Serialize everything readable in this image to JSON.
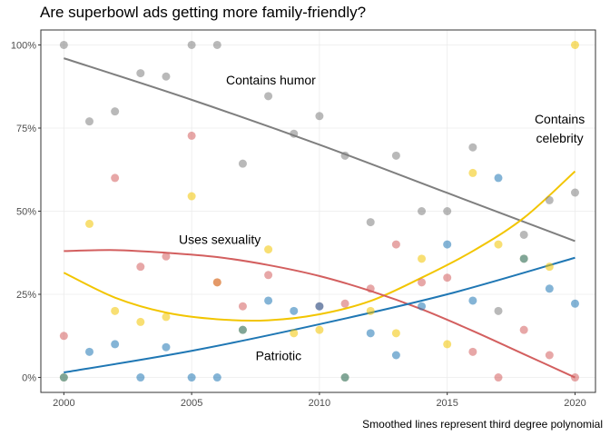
{
  "chart_data": {
    "type": "scatter",
    "title": "Are superbowl ads getting more family-friendly?",
    "caption": "Smoothed lines represent third degree polynomial",
    "xlabel": "",
    "ylabel": "",
    "xlim": [
      2000,
      2020
    ],
    "ylim": [
      0,
      1
    ],
    "x_ticks": [
      2000,
      2005,
      2010,
      2015,
      2020
    ],
    "x_tick_labels": [
      "2000",
      "2005",
      "2010",
      "2015",
      "2020"
    ],
    "y_ticks": [
      0,
      0.25,
      0.5,
      0.75,
      1
    ],
    "y_tick_labels": [
      "0%",
      "25%",
      "50%",
      "75%",
      "100%"
    ],
    "grid": true,
    "legend": "none",
    "series": [
      {
        "name": "Contains humor",
        "color": "#7f7f7f",
        "points": [
          [
            2000,
            1.0
          ],
          [
            2001,
            0.77
          ],
          [
            2002,
            0.8
          ],
          [
            2003,
            0.915
          ],
          [
            2004,
            0.905
          ],
          [
            2005,
            1.0
          ],
          [
            2006,
            1.0
          ],
          [
            2007,
            0.643
          ],
          [
            2008,
            0.846
          ],
          [
            2009,
            0.733
          ],
          [
            2010,
            0.786
          ],
          [
            2011,
            0.667
          ],
          [
            2012,
            0.467
          ],
          [
            2013,
            0.667
          ],
          [
            2014,
            0.5
          ],
          [
            2015,
            0.5
          ],
          [
            2016,
            0.692
          ],
          [
            2017,
            0.2
          ],
          [
            2018,
            0.429
          ],
          [
            2019,
            0.533
          ],
          [
            2020,
            0.556
          ]
        ],
        "trend": [
          [
            2000,
            0.96
          ],
          [
            2005,
            0.835
          ],
          [
            2010,
            0.7
          ],
          [
            2015,
            0.555
          ],
          [
            2020,
            0.41
          ]
        ]
      },
      {
        "name": "Contains celebrity",
        "color": "#f2c500",
        "points": [
          [
            2000,
            0.0
          ],
          [
            2001,
            0.462
          ],
          [
            2002,
            0.2
          ],
          [
            2003,
            0.167
          ],
          [
            2004,
            0.182
          ],
          [
            2005,
            0.545
          ],
          [
            2006,
            0.286
          ],
          [
            2007,
            0.143
          ],
          [
            2008,
            0.385
          ],
          [
            2009,
            0.133
          ],
          [
            2010,
            0.143
          ],
          [
            2011,
            0.0
          ],
          [
            2012,
            0.2
          ],
          [
            2013,
            0.133
          ],
          [
            2014,
            0.357
          ],
          [
            2015,
            0.1
          ],
          [
            2016,
            0.615
          ],
          [
            2017,
            0.4
          ],
          [
            2018,
            0.357
          ],
          [
            2019,
            0.333
          ],
          [
            2020,
            1.0
          ]
        ],
        "trend": [
          [
            2000,
            0.315
          ],
          [
            2002,
            0.24
          ],
          [
            2004,
            0.195
          ],
          [
            2006,
            0.175
          ],
          [
            2008,
            0.172
          ],
          [
            2010,
            0.19
          ],
          [
            2012,
            0.23
          ],
          [
            2014,
            0.3
          ],
          [
            2016,
            0.38
          ],
          [
            2018,
            0.48
          ],
          [
            2020,
            0.62
          ]
        ]
      },
      {
        "name": "Uses sexuality",
        "color": "#d35f5f",
        "points": [
          [
            2000,
            0.125
          ],
          [
            2002,
            0.6
          ],
          [
            2003,
            0.333
          ],
          [
            2004,
            0.364
          ],
          [
            2005,
            0.727
          ],
          [
            2006,
            0.286
          ],
          [
            2007,
            0.214
          ],
          [
            2008,
            0.308
          ],
          [
            2010,
            0.214
          ],
          [
            2011,
            0.222
          ],
          [
            2012,
            0.267
          ],
          [
            2013,
            0.4
          ],
          [
            2014,
            0.286
          ],
          [
            2015,
            0.3
          ],
          [
            2016,
            0.077
          ],
          [
            2017,
            0.0
          ],
          [
            2018,
            0.143
          ],
          [
            2019,
            0.067
          ],
          [
            2020,
            0.0
          ]
        ],
        "trend": [
          [
            2000,
            0.38
          ],
          [
            2002,
            0.383
          ],
          [
            2004,
            0.375
          ],
          [
            2006,
            0.362
          ],
          [
            2008,
            0.338
          ],
          [
            2010,
            0.305
          ],
          [
            2012,
            0.26
          ],
          [
            2014,
            0.205
          ],
          [
            2016,
            0.14
          ],
          [
            2018,
            0.07
          ],
          [
            2020,
            0.0
          ]
        ]
      },
      {
        "name": "Patriotic",
        "color": "#1f77b4",
        "points": [
          [
            2000,
            0.0
          ],
          [
            2001,
            0.077
          ],
          [
            2002,
            0.1
          ],
          [
            2003,
            0.0
          ],
          [
            2004,
            0.091
          ],
          [
            2005,
            0.0
          ],
          [
            2006,
            0.0
          ],
          [
            2007,
            0.143
          ],
          [
            2008,
            0.231
          ],
          [
            2009,
            0.2
          ],
          [
            2010,
            0.214
          ],
          [
            2011,
            0.0
          ],
          [
            2012,
            0.133
          ],
          [
            2013,
            0.067
          ],
          [
            2014,
            0.214
          ],
          [
            2015,
            0.4
          ],
          [
            2016,
            0.231
          ],
          [
            2017,
            0.6
          ],
          [
            2018,
            0.357
          ],
          [
            2019,
            0.267
          ],
          [
            2020,
            0.222
          ]
        ],
        "trend": [
          [
            2000,
            0.015
          ],
          [
            2005,
            0.08
          ],
          [
            2010,
            0.16
          ],
          [
            2015,
            0.25
          ],
          [
            2020,
            0.36
          ]
        ]
      }
    ],
    "annotations": [
      {
        "text": "Contains humor",
        "x": 2008.1,
        "y": 0.895
      },
      {
        "lines": [
          "Contains",
          "celebrity"
        ],
        "x": 2019.4,
        "y": 0.72
      },
      {
        "text": "Uses sexuality",
        "x": 2006.1,
        "y": 0.415
      },
      {
        "text": "Patriotic",
        "x": 2008.4,
        "y": 0.065
      }
    ]
  }
}
